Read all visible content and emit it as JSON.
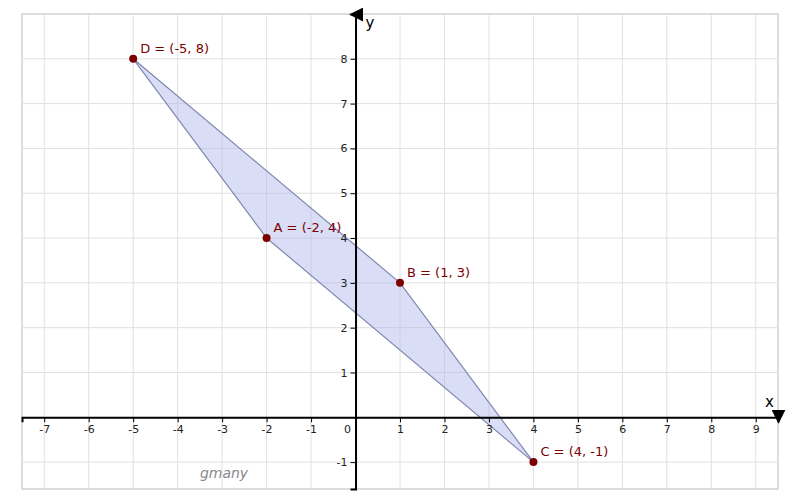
{
  "chart_data": {
    "type": "scatter",
    "xlabel": "x",
    "ylabel": "y",
    "xlim": [
      -7.5,
      9.5
    ],
    "ylim": [
      -1.6,
      9.0
    ],
    "xticks": [
      -7,
      -6,
      -5,
      -4,
      -3,
      -2,
      -1,
      0,
      1,
      2,
      3,
      4,
      5,
      6,
      7,
      8,
      9
    ],
    "yticks": [
      -1,
      1,
      2,
      3,
      4,
      5,
      6,
      7,
      8
    ],
    "grid": true,
    "series": [
      {
        "type": "polygon",
        "color": "#aab4e8",
        "x": [
          -5,
          -2,
          4,
          1
        ],
        "values": [
          8,
          4,
          -1,
          3
        ]
      },
      {
        "type": "scatter",
        "color": "#7b0000",
        "x": [
          -2,
          1,
          4,
          -5
        ],
        "values": [
          4,
          3,
          -1,
          8
        ],
        "value_labels": [
          "A = (-2, 4)",
          "B = (1, 3)",
          "C = (4, -1)",
          "D = (-5, 8)"
        ],
        "data_labels": true
      }
    ],
    "annotations": [
      {
        "text": "gmany",
        "x": -3.5,
        "y": -1.35
      }
    ]
  }
}
